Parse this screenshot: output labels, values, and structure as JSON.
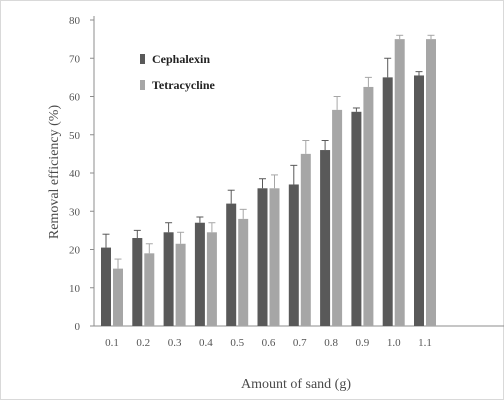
{
  "chart_data": {
    "type": "bar",
    "title": "",
    "xlabel": "Amount of sand (g)",
    "ylabel": "Removal efficiency (%)",
    "ylim": [
      0,
      80
    ],
    "yticks": [
      "0",
      "10",
      "20",
      "30",
      "40",
      "50",
      "60",
      "70",
      "80"
    ],
    "categories": [
      "0.1",
      "0.2",
      "0.3",
      "0.4",
      "0.5",
      "0.6",
      "0.7",
      "0.8",
      "0.9",
      "1.0",
      "1.1"
    ],
    "series": [
      {
        "name": "Cephalexin",
        "color": "#595959",
        "values": [
          20.5,
          23,
          24.5,
          27,
          32,
          36,
          37,
          46,
          56,
          65,
          65.5
        ],
        "errors": [
          3.5,
          2,
          2.5,
          1.5,
          3.5,
          2.5,
          5,
          2.5,
          1,
          5,
          1
        ]
      },
      {
        "name": "Tetracycline",
        "color": "#a6a6a6",
        "values": [
          15,
          19,
          21.5,
          24.5,
          28,
          36,
          45,
          56.5,
          62.5,
          75,
          75
        ],
        "errors": [
          2.5,
          2.5,
          3,
          2.5,
          2.5,
          3.5,
          3.5,
          3.5,
          2.5,
          1,
          1
        ]
      }
    ],
    "grid": false,
    "legend": "top-left"
  }
}
